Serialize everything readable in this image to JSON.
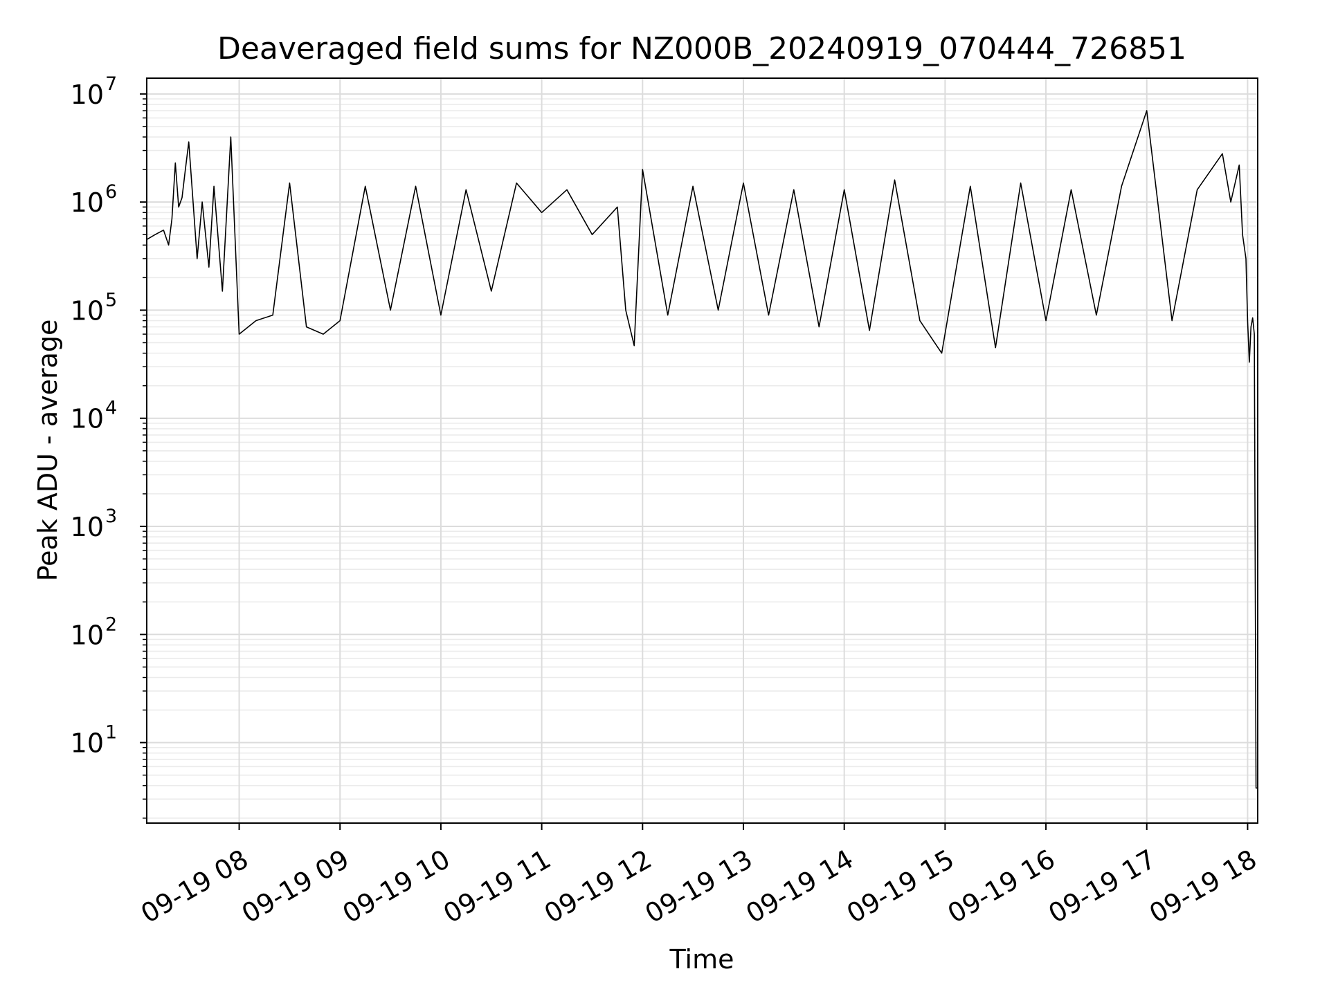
{
  "chart_data": {
    "type": "line",
    "title": "Deaveraged field sums for NZ000B_20240919_070444_726851",
    "xlabel": "Time",
    "ylabel": "Peak ADU - average",
    "yscale": "log",
    "grid": "both (major and minor)",
    "legend": "none",
    "line_color": "#000000",
    "xlim": [
      "2024-09-19T07:05",
      "2024-09-19T18:06"
    ],
    "ylim": [
      1.8,
      14000000
    ],
    "x_tick_labels": [
      "09-19 08",
      "09-19 09",
      "09-19 10",
      "09-19 11",
      "09-19 12",
      "09-19 13",
      "09-19 14",
      "09-19 15",
      "09-19 16",
      "09-19 17",
      "09-19 18"
    ],
    "x_tick_times": [
      "2024-09-19T08:00",
      "2024-09-19T09:00",
      "2024-09-19T10:00",
      "2024-09-19T11:00",
      "2024-09-19T12:00",
      "2024-09-19T13:00",
      "2024-09-19T14:00",
      "2024-09-19T15:00",
      "2024-09-19T16:00",
      "2024-09-19T17:00",
      "2024-09-19T18:00"
    ],
    "y_tick_labels": [
      {
        "base": "10",
        "exp": "1",
        "value": 10
      },
      {
        "base": "10",
        "exp": "2",
        "value": 100
      },
      {
        "base": "10",
        "exp": "3",
        "value": 1000
      },
      {
        "base": "10",
        "exp": "4",
        "value": 10000
      },
      {
        "base": "10",
        "exp": "5",
        "value": 100000
      },
      {
        "base": "10",
        "exp": "6",
        "value": 1000000
      },
      {
        "base": "10",
        "exp": "7",
        "value": 10000000
      }
    ],
    "series": [
      {
        "x": [
          "2024-09-19T07:05",
          "2024-09-19T07:10",
          "2024-09-19T07:15",
          "2024-09-19T07:18",
          "2024-09-19T07:20",
          "2024-09-19T07:22",
          "2024-09-19T07:24",
          "2024-09-19T07:26",
          "2024-09-19T07:28",
          "2024-09-19T07:30",
          "2024-09-19T07:35",
          "2024-09-19T07:38",
          "2024-09-19T07:42",
          "2024-09-19T07:45",
          "2024-09-19T07:50",
          "2024-09-19T07:55",
          "2024-09-19T08:00",
          "2024-09-19T08:10",
          "2024-09-19T08:20",
          "2024-09-19T08:30",
          "2024-09-19T08:40",
          "2024-09-19T08:50",
          "2024-09-19T09:00",
          "2024-09-19T09:15",
          "2024-09-19T09:30",
          "2024-09-19T09:45",
          "2024-09-19T10:00",
          "2024-09-19T10:15",
          "2024-09-19T10:30",
          "2024-09-19T10:45",
          "2024-09-19T11:00",
          "2024-09-19T11:15",
          "2024-09-19T11:30",
          "2024-09-19T11:45",
          "2024-09-19T11:50",
          "2024-09-19T11:55",
          "2024-09-19T12:00",
          "2024-09-19T12:15",
          "2024-09-19T12:30",
          "2024-09-19T12:45",
          "2024-09-19T13:00",
          "2024-09-19T13:15",
          "2024-09-19T13:30",
          "2024-09-19T13:45",
          "2024-09-19T14:00",
          "2024-09-19T14:15",
          "2024-09-19T14:30",
          "2024-09-19T14:45",
          "2024-09-19T14:58",
          "2024-09-19T15:15",
          "2024-09-19T15:30",
          "2024-09-19T15:45",
          "2024-09-19T16:00",
          "2024-09-19T16:15",
          "2024-09-19T16:30",
          "2024-09-19T16:45",
          "2024-09-19T17:00",
          "2024-09-19T17:15",
          "2024-09-19T17:30",
          "2024-09-19T17:45",
          "2024-09-19T17:50",
          "2024-09-19T17:55",
          "2024-09-19T17:57",
          "2024-09-19T17:59",
          "2024-09-19T18:00",
          "2024-09-19T18:01",
          "2024-09-19T18:02",
          "2024-09-19T18:03",
          "2024-09-19T18:04",
          "2024-09-19T18:05",
          "2024-09-19T18:06"
        ],
        "y": [
          450000,
          500000,
          550000,
          400000,
          700000,
          2300000,
          900000,
          1100000,
          2000000,
          3600000,
          300000,
          1000000,
          250000,
          1400000,
          150000,
          4000000,
          60000,
          80000,
          90000,
          1500000,
          70000,
          60000,
          80000,
          1400000,
          100000,
          1400000,
          90000,
          1300000,
          150000,
          1500000,
          800000,
          1300000,
          500000,
          900000,
          100000,
          47000,
          2000000,
          90000,
          1400000,
          100000,
          1500000,
          90000,
          1300000,
          70000,
          1300000,
          65000,
          1600000,
          80000,
          40000,
          1400000,
          45000,
          1500000,
          80000,
          1300000,
          90000,
          1400000,
          7000000,
          80000,
          1300000,
          2800000,
          1000000,
          2200000,
          500000,
          300000,
          80000,
          33000,
          70000,
          85000,
          60000,
          3.8,
          3.8
        ]
      }
    ]
  }
}
